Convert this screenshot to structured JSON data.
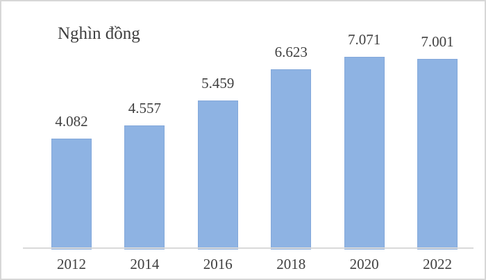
{
  "frame": {
    "background_color": "#ffffff",
    "border_color": "#d7d7d7"
  },
  "chart_data": {
    "type": "bar",
    "title": "Nghìn đồng",
    "categories": [
      "2012",
      "2014",
      "2016",
      "2018",
      "2020",
      "2022"
    ],
    "values": [
      4082,
      4557,
      5459,
      6623,
      7071,
      7001
    ],
    "value_labels": [
      "4.082",
      "4.557",
      "5.459",
      "6.623",
      "7.071",
      "7.001"
    ],
    "xlabel": "",
    "ylabel": "",
    "ylim": [
      0,
      8000
    ],
    "grid": false,
    "legend": false,
    "y_axis_ticks_visible": false,
    "bar_color": "#8eb3e3",
    "bar_border_color": "#83a8da",
    "axis_line_color": "#d9d9d9",
    "label_color": "#404040",
    "title_color": "#3e3e3e"
  }
}
